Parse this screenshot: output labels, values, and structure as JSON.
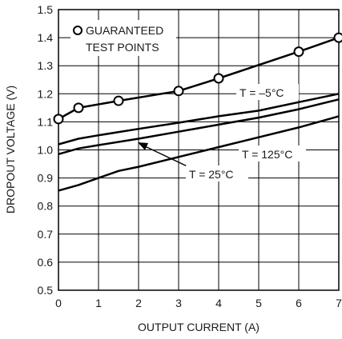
{
  "chart_data": {
    "type": "line",
    "title": "",
    "xlabel": "OUTPUT CURRENT (A)",
    "ylabel": "DROPOUT VOLTAGE (V)",
    "xlim": [
      0,
      7
    ],
    "ylim": [
      0.5,
      1.5
    ],
    "x_ticks": [
      "0",
      "1",
      "2",
      "3",
      "4",
      "5",
      "6",
      "7"
    ],
    "y_ticks": [
      "0.5",
      "0.6",
      "0.7",
      "0.8",
      "0.9",
      "1.0",
      "1.1",
      "1.2",
      "1.3",
      "1.4",
      "1.5"
    ],
    "grid": true,
    "legend": {
      "marker": "open-circle",
      "line1": "GUARANTEED",
      "line2": "TEST POINTS",
      "placement": "top-left"
    },
    "series": [
      {
        "name": "GUARANTEED TEST POINTS",
        "markers": true,
        "x": [
          0,
          0.5,
          1.5,
          3,
          4,
          6,
          7
        ],
        "y": [
          1.11,
          1.15,
          1.175,
          1.21,
          1.255,
          1.35,
          1.4
        ]
      },
      {
        "name": "T = –5°C",
        "markers": false,
        "x": [
          0,
          0.5,
          1,
          2,
          3,
          4,
          5,
          6,
          7
        ],
        "y": [
          1.02,
          1.04,
          1.052,
          1.075,
          1.097,
          1.12,
          1.14,
          1.17,
          1.2
        ]
      },
      {
        "name": "T = 25°C",
        "markers": false,
        "x": [
          0,
          0.5,
          1,
          2,
          3,
          4,
          5,
          6,
          7
        ],
        "y": [
          0.985,
          1.005,
          1.017,
          1.04,
          1.065,
          1.09,
          1.115,
          1.145,
          1.18
        ]
      },
      {
        "name": "T = 125°C",
        "markers": false,
        "x": [
          0,
          0.5,
          1,
          1.5,
          2,
          3,
          4,
          5,
          6,
          7
        ],
        "y": [
          0.855,
          0.875,
          0.9,
          0.925,
          0.94,
          0.975,
          1.01,
          1.045,
          1.08,
          1.12
        ]
      }
    ],
    "annotations": [
      {
        "text": "T = –5°C",
        "series": "T = –5°C"
      },
      {
        "text": "T = 125°C",
        "series": "T = 125°C"
      },
      {
        "text": "T = 25°C",
        "series": "T = 25°C",
        "arrow": true
      }
    ]
  }
}
